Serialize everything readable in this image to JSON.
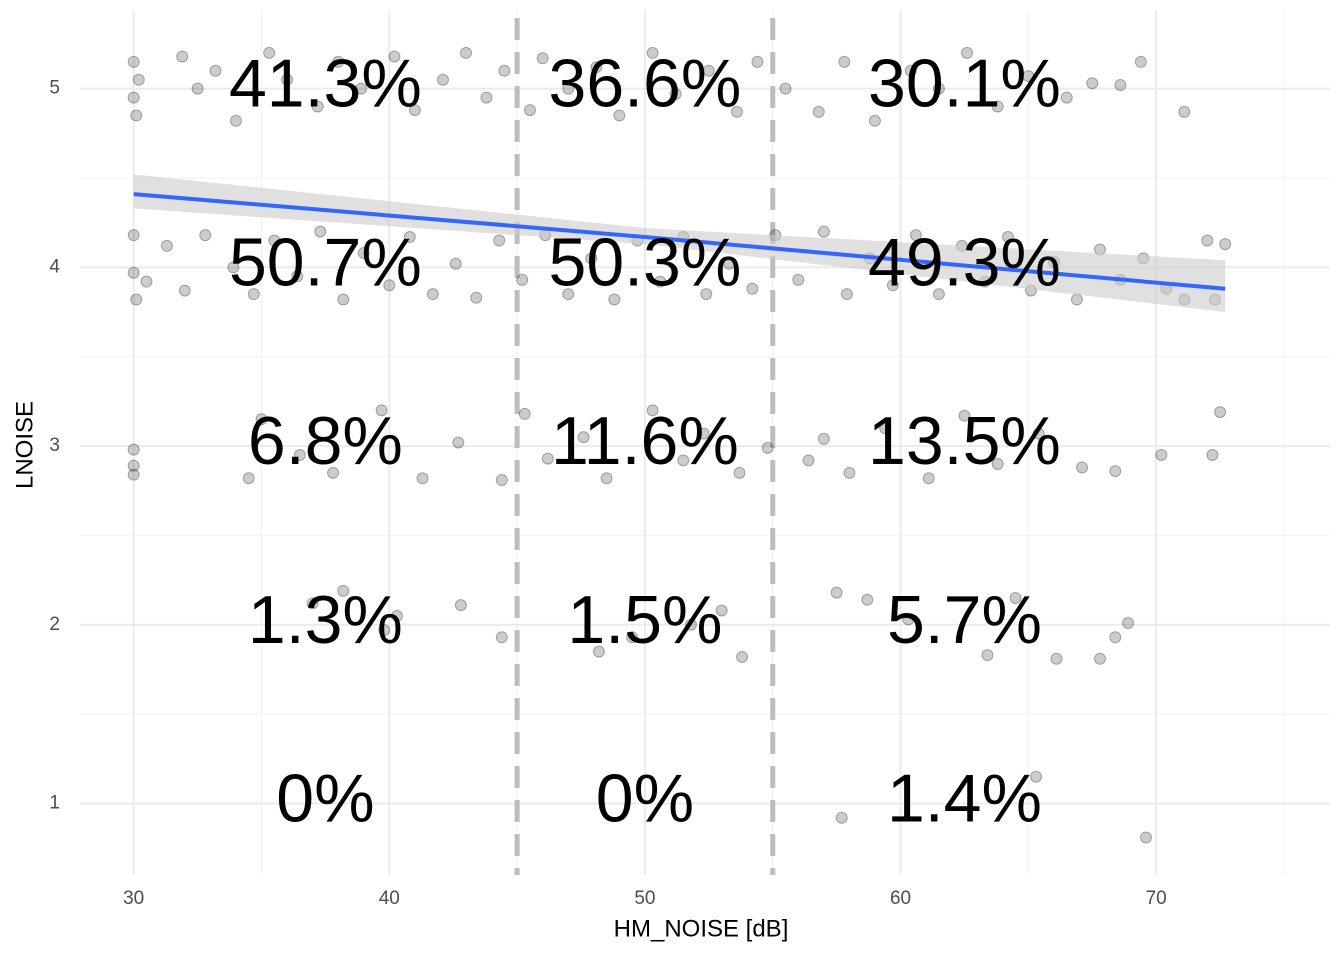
{
  "chart_data": {
    "type": "scatter",
    "x_label": "HM_NOISE [dB]",
    "y_label": "LNOISE",
    "xlim": [
      27.9,
      76.8
    ],
    "ylim": [
      0.6,
      5.44
    ],
    "xticks": [
      30,
      40,
      50,
      60,
      70
    ],
    "yticks": [
      1,
      2,
      3,
      4,
      5
    ],
    "x_minor_grid": [
      35,
      45,
      55,
      65,
      75
    ],
    "y_minor_grid": [
      1.5,
      2.5,
      3.5,
      4.5
    ],
    "grid": true,
    "vlines": [
      45,
      55
    ],
    "vline_color": "#bdbdbd",
    "points": {
      "color": "#000000",
      "alpha": 0.2,
      "x": [
        30,
        30,
        30.1,
        30.2,
        31.9,
        32.5,
        33.2,
        34,
        35.3,
        36,
        37.2,
        38,
        38.9,
        40.2,
        41,
        42.1,
        43,
        43.8,
        44.5,
        45.5,
        46,
        47,
        48.1,
        49,
        50.3,
        51.2,
        52.5,
        53.6,
        54.4,
        55.5,
        56.8,
        57.8,
        59,
        60.4,
        61.5,
        62.6,
        63.8,
        65,
        66.5,
        67.5,
        68.6,
        69.4,
        71.1,
        30,
        30,
        30.1,
        30.5,
        31.3,
        32,
        32.8,
        33.9,
        34.7,
        35.5,
        36.4,
        37.3,
        38.2,
        39,
        40,
        40.8,
        41.7,
        42.6,
        43.4,
        44.3,
        45.2,
        46.1,
        47,
        47.9,
        48.8,
        49.7,
        50.6,
        51.5,
        52.4,
        53.3,
        54.2,
        55.1,
        56,
        57,
        57.9,
        58.8,
        59.7,
        60.6,
        61.5,
        62.4,
        63.3,
        64.2,
        65.1,
        66,
        66.9,
        67.8,
        68.6,
        69.5,
        70.4,
        71.1,
        72,
        72.7,
        72.3,
        30,
        30,
        30,
        34.5,
        35,
        36.5,
        37.8,
        39.7,
        41.3,
        42.7,
        44.4,
        45.3,
        46.2,
        47.6,
        48.5,
        50.3,
        51.5,
        52.3,
        53.7,
        54.8,
        56.4,
        57,
        58,
        59.4,
        61.1,
        62.5,
        63.8,
        65.4,
        67.1,
        68.4,
        70.2,
        72.2,
        72.5,
        37,
        38.2,
        39.8,
        40.3,
        42.8,
        44.4,
        48.2,
        49.5,
        51.8,
        53,
        53.8,
        57.5,
        58.7,
        60.3,
        63.4,
        64.5,
        66.1,
        67.8,
        68.4,
        68.9,
        57.7,
        65.3,
        69.6
      ],
      "y": [
        5.15,
        4.95,
        4.85,
        5.05,
        5.18,
        5.0,
        5.1,
        4.82,
        5.2,
        5.05,
        4.9,
        5.15,
        5.0,
        5.18,
        4.88,
        5.05,
        5.2,
        4.95,
        5.1,
        4.88,
        5.17,
        5.0,
        5.12,
        4.85,
        5.2,
        4.97,
        5.1,
        4.87,
        5.15,
        5.0,
        4.87,
        5.15,
        4.82,
        5.1,
        5.0,
        5.2,
        4.9,
        5.07,
        4.95,
        5.03,
        5.02,
        5.15,
        4.87,
        4.18,
        3.97,
        3.82,
        3.92,
        4.12,
        3.87,
        4.18,
        4.0,
        3.85,
        4.15,
        3.95,
        4.2,
        3.82,
        4.08,
        3.9,
        4.17,
        3.85,
        4.02,
        3.83,
        4.15,
        3.93,
        4.18,
        3.85,
        4.05,
        3.82,
        4.15,
        3.92,
        4.17,
        3.85,
        4.02,
        3.88,
        4.18,
        3.93,
        4.2,
        3.85,
        4.05,
        3.9,
        4.18,
        3.85,
        4.12,
        3.92,
        4.17,
        3.87,
        4.03,
        3.82,
        4.1,
        3.93,
        4.05,
        3.88,
        3.82,
        4.15,
        4.13,
        3.82,
        2.98,
        2.84,
        2.89,
        2.82,
        3.15,
        2.95,
        2.85,
        3.2,
        2.82,
        3.02,
        2.81,
        3.18,
        2.93,
        3.05,
        2.82,
        3.2,
        2.92,
        3.07,
        2.85,
        2.99,
        2.92,
        3.04,
        2.85,
        3.1,
        2.82,
        3.17,
        2.9,
        3.07,
        2.88,
        2.86,
        2.95,
        2.95,
        3.19,
        2.12,
        2.19,
        1.97,
        2.05,
        2.11,
        1.93,
        1.85,
        1.93,
        2.0,
        2.08,
        1.82,
        2.18,
        2.14,
        2.03,
        1.83,
        2.15,
        1.81,
        1.81,
        1.93,
        2.01,
        0.92,
        1.15,
        0.81
      ]
    },
    "fit": {
      "color": "#3366ff",
      "band_color": "#cccccc",
      "x": [
        30,
        50,
        72.7
      ],
      "y": [
        4.41,
        4.17,
        3.88
      ],
      "lower": [
        4.33,
        4.13,
        3.75
      ],
      "upper": [
        4.52,
        4.22,
        4.04
      ]
    },
    "annotations": [
      {
        "text": "41.3%",
        "x": 37.5,
        "y": 5
      },
      {
        "text": "36.6%",
        "x": 50,
        "y": 5
      },
      {
        "text": "30.1%",
        "x": 62.5,
        "y": 5
      },
      {
        "text": "50.7%",
        "x": 37.5,
        "y": 4
      },
      {
        "text": "50.3%",
        "x": 50,
        "y": 4
      },
      {
        "text": "49.3%",
        "x": 62.5,
        "y": 4
      },
      {
        "text": "6.8%",
        "x": 37.5,
        "y": 3
      },
      {
        "text": "11.6%",
        "x": 50,
        "y": 3
      },
      {
        "text": "13.5%",
        "x": 62.5,
        "y": 3
      },
      {
        "text": "1.3%",
        "x": 37.5,
        "y": 2
      },
      {
        "text": "1.5%",
        "x": 50,
        "y": 2
      },
      {
        "text": "5.7%",
        "x": 62.5,
        "y": 2
      },
      {
        "text": "0%",
        "x": 37.5,
        "y": 1
      },
      {
        "text": "0%",
        "x": 50,
        "y": 1
      },
      {
        "text": "1.4%",
        "x": 62.5,
        "y": 1
      }
    ]
  }
}
